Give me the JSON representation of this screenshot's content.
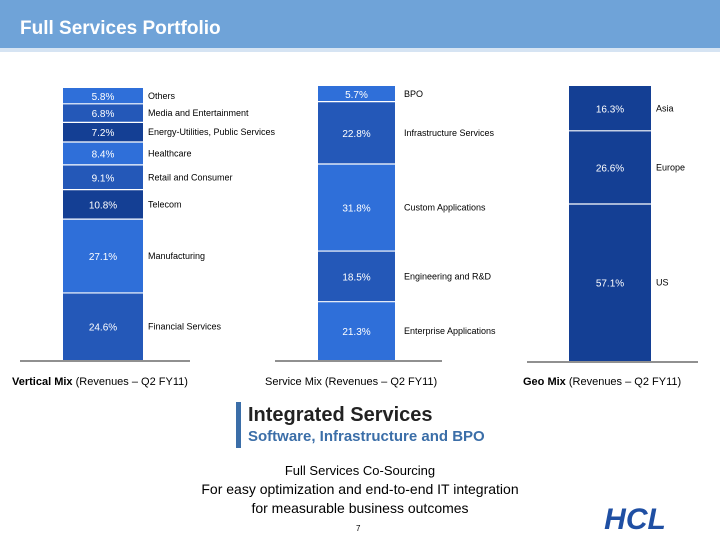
{
  "slide": {
    "title": "Full Services Portfolio",
    "page_number": "7"
  },
  "colors": {
    "header": "#6fa3d8",
    "light": "#2f6fd9",
    "mid": "#2458b8",
    "dark": "#143f94"
  },
  "chart_data": [
    {
      "type": "bar",
      "stacked": true,
      "title_bold": "Vertical Mix",
      "title_rest": " (Revenues – Q2 FY11)",
      "unit": "%",
      "segments": [
        {
          "label": "Others",
          "value": 5.8,
          "text": "5.8%"
        },
        {
          "label": "Media and Entertainment",
          "value": 6.8,
          "text": "6.8%"
        },
        {
          "label": "Energy-Utilities, Public Services",
          "value": 7.2,
          "text": "7.2%"
        },
        {
          "label": "Healthcare",
          "value": 8.4,
          "text": "8.4%"
        },
        {
          "label": "Retail and Consumer",
          "value": 9.1,
          "text": "9.1%"
        },
        {
          "label": "Telecom",
          "value": 10.8,
          "text": "10.8%"
        },
        {
          "label": "Manufacturing",
          "value": 27.1,
          "text": "27.1%"
        },
        {
          "label": "Financial Services",
          "value": 24.6,
          "text": "24.6%"
        }
      ]
    },
    {
      "type": "bar",
      "stacked": true,
      "title_bold": "",
      "title_rest": "Service Mix (Revenues – Q2 FY11)",
      "unit": "%",
      "segments": [
        {
          "label": "BPO",
          "value": 5.7,
          "text": "5.7%"
        },
        {
          "label": "Infrastructure Services",
          "value": 22.8,
          "text": "22.8%"
        },
        {
          "label": "Custom Applications",
          "value": 31.8,
          "text": "31.8%"
        },
        {
          "label": "Engineering and R&D",
          "value": 18.5,
          "text": "18.5%"
        },
        {
          "label": "Enterprise Applications",
          "value": 21.3,
          "text": "21.3%"
        }
      ]
    },
    {
      "type": "bar",
      "stacked": true,
      "title_bold": "Geo Mix",
      "title_rest": " (Revenues – Q2 FY11)",
      "unit": "%",
      "segments": [
        {
          "label": "Asia",
          "value": 16.3,
          "text": "16.3%"
        },
        {
          "label": "Europe",
          "value": 26.6,
          "text": "26.6%"
        },
        {
          "label": "US",
          "value": 57.1,
          "text": "57.1%"
        }
      ]
    }
  ],
  "branding": {
    "line1": "Integrated Services",
    "line2": "Software, Infrastructure and BPO",
    "tagline1": "Full Services Co-Sourcing",
    "tagline2": "For easy optimization and end-to-end IT integration",
    "tagline3": "for measurable business outcomes",
    "logo_text": "HCL"
  }
}
